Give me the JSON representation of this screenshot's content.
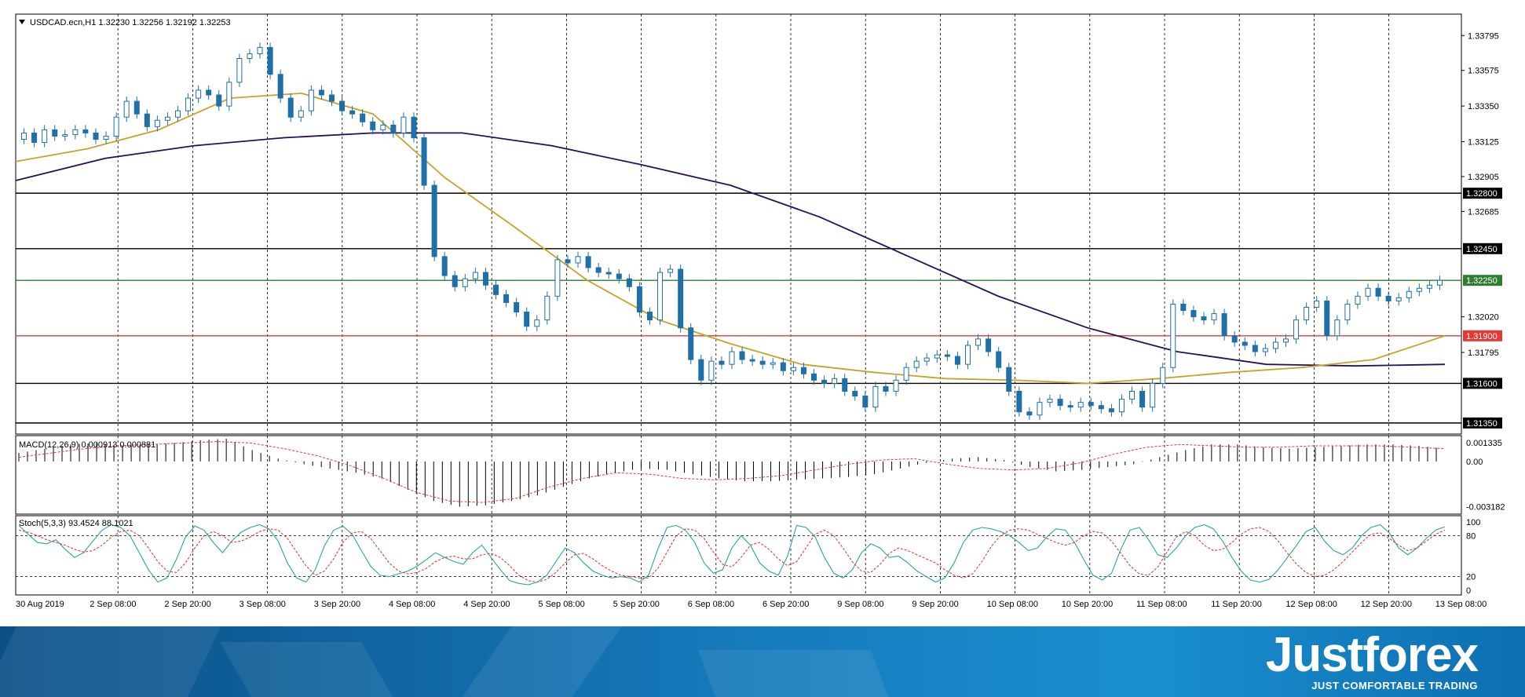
{
  "chart_data": {
    "type": "candlestick",
    "symbol_header": "USDCAD.ecn,H1  1.32230 1.32256 1.32192 1.32253",
    "price_axis_ticks": [
      "1.33795",
      "1.33575",
      "1.33350",
      "1.33125",
      "1.32905",
      "1.32685",
      "1.32020",
      "1.31795"
    ],
    "y_range": [
      1.3128,
      1.3393
    ],
    "x_labels": [
      "30 Aug 2019",
      "2 Sep 08:00",
      "2 Sep 20:00",
      "3 Sep 08:00",
      "3 Sep 20:00",
      "4 Sep 08:00",
      "4 Sep 20:00",
      "5 Sep 08:00",
      "5 Sep 20:00",
      "6 Sep 08:00",
      "6 Sep 20:00",
      "9 Sep 08:00",
      "9 Sep 20:00",
      "10 Sep 08:00",
      "10 Sep 20:00",
      "11 Sep 08:00",
      "11 Sep 20:00",
      "12 Sep 08:00",
      "12 Sep 20:00",
      "13 Sep 08:00"
    ],
    "candle_closes": [
      1.3318,
      1.3312,
      1.332,
      1.3316,
      1.3317,
      1.332,
      1.3318,
      1.3314,
      1.3316,
      1.3328,
      1.3338,
      1.333,
      1.3322,
      1.3326,
      1.3328,
      1.3332,
      1.334,
      1.3345,
      1.3342,
      1.3335,
      1.335,
      1.3365,
      1.3368,
      1.3372,
      1.3355,
      1.334,
      1.3328,
      1.3332,
      1.3345,
      1.3342,
      1.3338,
      1.3332,
      1.333,
      1.3325,
      1.332,
      1.3323,
      1.3318,
      1.3328,
      1.3315,
      1.3285,
      1.324,
      1.3228,
      1.3221,
      1.3226,
      1.323,
      1.3222,
      1.3216,
      1.3211,
      1.3205,
      1.3196,
      1.32,
      1.3215,
      1.3238,
      1.3236,
      1.324,
      1.3233,
      1.323,
      1.3229,
      1.3226,
      1.3221,
      1.3205,
      1.32,
      1.323,
      1.3232,
      1.3195,
      1.3175,
      1.3162,
      1.3174,
      1.3172,
      1.318,
      1.3175,
      1.3174,
      1.3172,
      1.3173,
      1.3168,
      1.317,
      1.3166,
      1.3162,
      1.316,
      1.3163,
      1.3155,
      1.3152,
      1.3145,
      1.3158,
      1.3155,
      1.3162,
      1.317,
      1.3174,
      1.3176,
      1.3178,
      1.3177,
      1.3172,
      1.3184,
      1.3188,
      1.318,
      1.317,
      1.3155,
      1.3142,
      1.314,
      1.3148,
      1.315,
      1.3146,
      1.3145,
      1.3148,
      1.3146,
      1.3144,
      1.3142,
      1.315,
      1.3155,
      1.3145,
      1.316,
      1.317,
      1.321,
      1.3206,
      1.3202,
      1.32,
      1.3204,
      1.319,
      1.3186,
      1.3184,
      1.318,
      1.3182,
      1.3186,
      1.3188,
      1.32,
      1.3208,
      1.3212,
      1.319,
      1.32,
      1.321,
      1.3215,
      1.322,
      1.3215,
      1.3212,
      1.3214,
      1.3218,
      1.322,
      1.3222,
      1.3225
    ],
    "ma_fast": [
      1.33,
      1.3308,
      1.332,
      1.334,
      1.3343,
      1.333,
      1.329,
      1.3258,
      1.3225,
      1.32,
      1.3185,
      1.3172,
      1.3167,
      1.3163,
      1.3162,
      1.316,
      1.3163,
      1.3167,
      1.317,
      1.3175,
      1.319
    ],
    "ma_slow": [
      1.3288,
      1.3302,
      1.331,
      1.3315,
      1.3318,
      1.3318,
      1.331,
      1.3298,
      1.3285,
      1.3265,
      1.324,
      1.3215,
      1.3195,
      1.318,
      1.3172,
      1.3171,
      1.3172
    ],
    "ma_fast_color": "#c9a227",
    "ma_slow_color": "#2a0f57",
    "candle_color": "#1f6fa8",
    "levels": [
      {
        "value": "1.32800",
        "price": 1.328,
        "color": "#000000"
      },
      {
        "value": "1.32450",
        "price": 1.3245,
        "color": "#000000"
      },
      {
        "value": "1.32250",
        "price": 1.3225,
        "color": "#2e7d32"
      },
      {
        "value": "1.31900",
        "price": 1.319,
        "color": "#e53935"
      },
      {
        "value": "1.31600",
        "price": 1.316,
        "color": "#000000"
      },
      {
        "value": "1.31350",
        "price": 1.3135,
        "color": "#000000"
      }
    ],
    "macd": {
      "label": "MACD(12,26,9) 0.000913 0.000881",
      "ticks": [
        "0.001335",
        "0.00",
        "-0.003182"
      ],
      "y_range": [
        -0.0035,
        0.0016
      ],
      "histogram": [
        0.0006,
        0.0009,
        0.0012,
        0.0013,
        0.0011,
        0.0012,
        0.0013,
        0.0015,
        0.0016,
        0.0008,
        0.0002,
        -0.0002,
        -0.0005,
        -0.0008,
        -0.0012,
        -0.002,
        -0.0028,
        -0.0032,
        -0.0031,
        -0.0028,
        -0.0024,
        -0.0018,
        -0.0012,
        -0.0008,
        -0.0005,
        -0.0006,
        -0.0009,
        -0.0012,
        -0.0014,
        -0.0014,
        -0.0013,
        -0.0012,
        -0.0011,
        -0.0009,
        -0.0005,
        -0.0001,
        0.0002,
        0.0003,
        0.0001,
        -0.0004,
        -0.0007,
        -0.0006,
        -0.0004,
        -0.0002,
        0.0003,
        0.0008,
        0.0012,
        0.0012,
        0.001,
        0.0009,
        0.001,
        0.0011,
        0.0012,
        0.0012,
        0.0011,
        0.0009
      ],
      "signal": [
        0.0003,
        0.0006,
        0.0009,
        0.0011,
        0.0012,
        0.0013,
        0.0014,
        0.0013,
        0.0009,
        0.0004,
        -0.0003,
        -0.0012,
        -0.0022,
        -0.0028,
        -0.0029,
        -0.0026,
        -0.0018,
        -0.0012,
        -0.0008,
        -0.0009,
        -0.0012,
        -0.0013,
        -0.0012,
        -0.001,
        -0.0006,
        -0.0002,
        0.0001,
        0.0002,
        -0.0002,
        -0.0005,
        -0.0006,
        -0.0005,
        -0.0001,
        0.0005,
        0.001,
        0.0012,
        0.0011,
        0.001,
        0.001,
        0.0011,
        0.0011,
        0.0011,
        0.001,
        0.0009
      ]
    },
    "stoch": {
      "label": "Stoch(5,3,3) 93.4524 88.1021",
      "ticks": [
        "100",
        "80",
        "20",
        "0"
      ],
      "y_range": [
        0,
        100
      ],
      "levels": [
        80,
        20
      ],
      "main": [
        95,
        82,
        70,
        68,
        74,
        60,
        48,
        55,
        72,
        88,
        96,
        92,
        80,
        55,
        30,
        12,
        18,
        45,
        78,
        94,
        88,
        70,
        55,
        72,
        85,
        92,
        96,
        90,
        72,
        40,
        18,
        12,
        30,
        65,
        88,
        94,
        82,
        58,
        35,
        22,
        20,
        24,
        28,
        35,
        45,
        55,
        48,
        42,
        38,
        55,
        66,
        48,
        30,
        14,
        10,
        8,
        12,
        22,
        42,
        62,
        55,
        40,
        28,
        22,
        18,
        20,
        18,
        12,
        22,
        60,
        92,
        95,
        88,
        70,
        40,
        25,
        30,
        62,
        80,
        66,
        40,
        28,
        22,
        50,
        95,
        92,
        78,
        48,
        25,
        18,
        30,
        55,
        68,
        62,
        48,
        50,
        40,
        28,
        20,
        12,
        18,
        40,
        70,
        88,
        92,
        90,
        86,
        80,
        70,
        58,
        62,
        78,
        90,
        88,
        70,
        45,
        22,
        15,
        25,
        60,
        88,
        92,
        74,
        52,
        48,
        62,
        80,
        92,
        96,
        90,
        72,
        48,
        28,
        15,
        12,
        16,
        30,
        48,
        66,
        86,
        92,
        72,
        58,
        52,
        62,
        80,
        92,
        96,
        84,
        62,
        52,
        62,
        76,
        88,
        93
      ],
      "signal": [
        88,
        85,
        80,
        74,
        70,
        66,
        60,
        56,
        58,
        66,
        78,
        86,
        88,
        80,
        62,
        42,
        28,
        26,
        40,
        62,
        80,
        86,
        80,
        70,
        72,
        78,
        86,
        90,
        88,
        76,
        56,
        36,
        22,
        28,
        46,
        70,
        84,
        86,
        76,
        58,
        40,
        28,
        24,
        26,
        32,
        42,
        48,
        50,
        46,
        46,
        52,
        54,
        48,
        36,
        22,
        14,
        12,
        16,
        26,
        40,
        52,
        54,
        46,
        36,
        28,
        22,
        20,
        18,
        18,
        32,
        56,
        80,
        90,
        88,
        76,
        56,
        38,
        34,
        48,
        66,
        70,
        60,
        46,
        36,
        42,
        62,
        82,
        88,
        80,
        62,
        42,
        28,
        26,
        38,
        54,
        62,
        58,
        52,
        46,
        40,
        30,
        22,
        18,
        24,
        42,
        64,
        80,
        88,
        90,
        88,
        82,
        76,
        70,
        66,
        70,
        80,
        86,
        84,
        72,
        54,
        36,
        24,
        22,
        34,
        56,
        78,
        86,
        80,
        66,
        58,
        60,
        70,
        82,
        90,
        92,
        86,
        72,
        54,
        38,
        26,
        20,
        22,
        30,
        42,
        56,
        70,
        82,
        84,
        76,
        66,
        58,
        62,
        72,
        82,
        88
      ]
    }
  },
  "branding": {
    "name": "Justforex",
    "tagline": "JUST COMFORTABLE TRADING",
    "background_color": "#1a7fc1"
  }
}
